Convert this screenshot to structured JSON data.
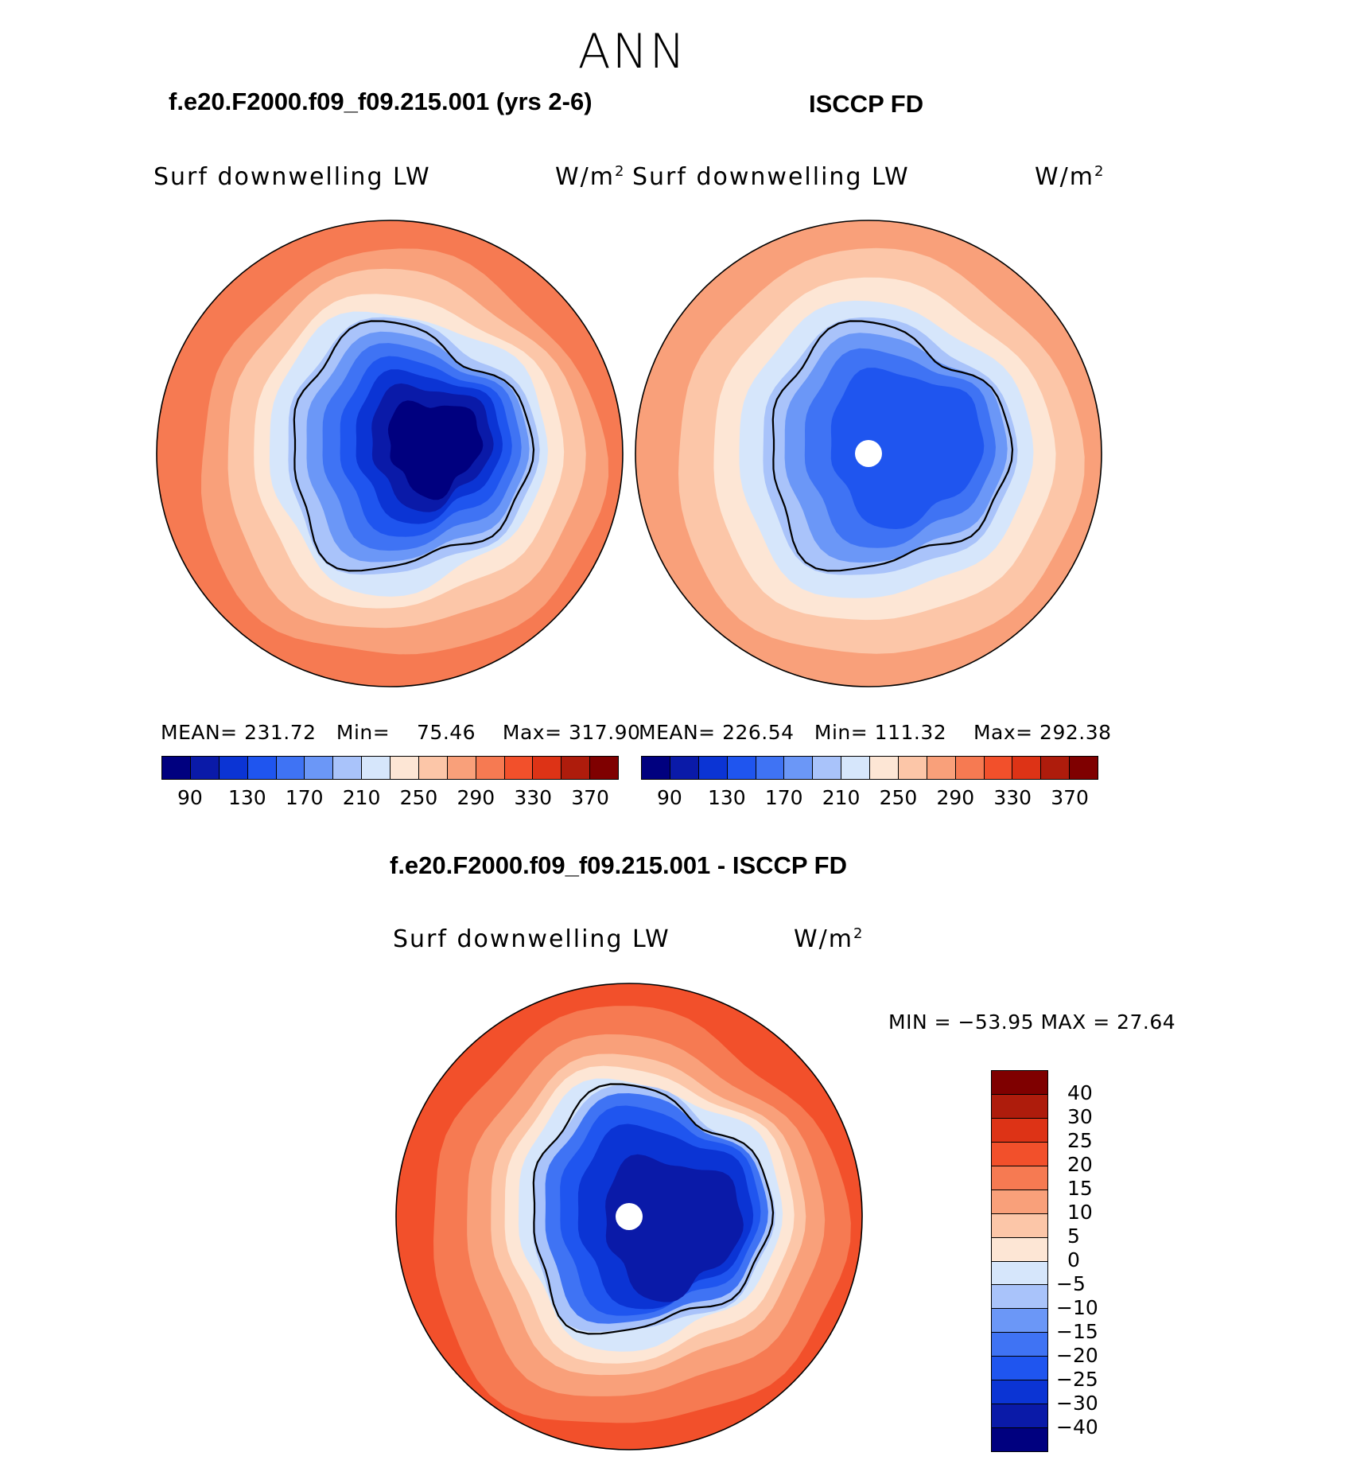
{
  "title": "ANN",
  "panels": {
    "model": {
      "title": "f.e20.F2000.f09_f09.215.001 (yrs 2-6)",
      "variable": "Surf  downwelling  LW",
      "units": "W/m",
      "units_sup": "2",
      "mean_label": "MEAN=",
      "mean": "231.72",
      "min_label": "Min=",
      "min": "75.46",
      "max_label": "Max=",
      "max": "317.90"
    },
    "obs": {
      "title": "ISCCP FD",
      "variable": "Surf  downwelling  LW",
      "units": "W/m",
      "units_sup": "2",
      "mean_label": "MEAN=",
      "mean": "226.54",
      "min_label": "Min=",
      "min": "111.32",
      "max_label": "Max=",
      "max": "292.38"
    },
    "diff": {
      "title": "f.e20.F2000.f09_f09.215.001 - ISCCP FD",
      "variable": "Surf  downwelling  LW",
      "units": "W/m",
      "units_sup": "2",
      "minmax_text": "MIN  =  −53.95  MAX  =    27.64"
    }
  },
  "chart_data": [
    {
      "type": "heatmap",
      "name": "model",
      "projection": "south polar stereographic",
      "title": "f.e20.F2000.f09_f09.215.001 (yrs 2-6)",
      "variable": "Surf downwelling LW",
      "units": "W/m2",
      "mean": 231.72,
      "min": 75.46,
      "max": 317.9,
      "levels": [
        90,
        110,
        130,
        150,
        170,
        190,
        210,
        230,
        250,
        270,
        290,
        310,
        330,
        350,
        370
      ],
      "colorbar_ticks": [
        "90",
        "130",
        "170",
        "210",
        "250",
        "290",
        "330",
        "370"
      ],
      "colors": [
        "#00007f",
        "#0a1aa8",
        "#0b34d4",
        "#1f55ef",
        "#3f73f4",
        "#6b97f7",
        "#a9c3fa",
        "#d6e6fb",
        "#fde6d5",
        "#fcc6a8",
        "#f9a07a",
        "#f67a52",
        "#f2502b",
        "#dd3316",
        "#ae1c0c",
        "#7f0000"
      ]
    },
    {
      "type": "heatmap",
      "name": "obs",
      "projection": "south polar stereographic",
      "title": "ISCCP FD",
      "variable": "Surf downwelling LW",
      "units": "W/m2",
      "mean": 226.54,
      "min": 111.32,
      "max": 292.38,
      "levels": [
        90,
        110,
        130,
        150,
        170,
        190,
        210,
        230,
        250,
        270,
        290,
        310,
        330,
        350,
        370
      ],
      "colorbar_ticks": [
        "90",
        "130",
        "170",
        "210",
        "250",
        "290",
        "330",
        "370"
      ],
      "colors": [
        "#00007f",
        "#0a1aa8",
        "#0b34d4",
        "#1f55ef",
        "#3f73f4",
        "#6b97f7",
        "#a9c3fa",
        "#d6e6fb",
        "#fde6d5",
        "#fcc6a8",
        "#f9a07a",
        "#f67a52",
        "#f2502b",
        "#dd3316",
        "#ae1c0c",
        "#7f0000"
      ]
    },
    {
      "type": "heatmap",
      "name": "difference",
      "projection": "south polar stereographic",
      "title": "f.e20.F2000.f09_f09.215.001 - ISCCP FD",
      "variable": "Surf downwelling LW",
      "units": "W/m2",
      "min": -53.95,
      "max": 27.64,
      "colorbar_ticks": [
        "40",
        "30",
        "25",
        "20",
        "15",
        "10",
        "5",
        "0",
        "−5",
        "−10",
        "−15",
        "−20",
        "−25",
        "−30",
        "−40"
      ],
      "colors": [
        "#7f0000",
        "#ae1c0c",
        "#dd3316",
        "#f2502b",
        "#f67a52",
        "#f9a07a",
        "#fcc6a8",
        "#fde6d5",
        "#d6e6fb",
        "#a9c3fa",
        "#6b97f7",
        "#3f73f4",
        "#1f55ef",
        "#0b34d4",
        "#0a1aa8",
        "#00007f"
      ]
    }
  ]
}
